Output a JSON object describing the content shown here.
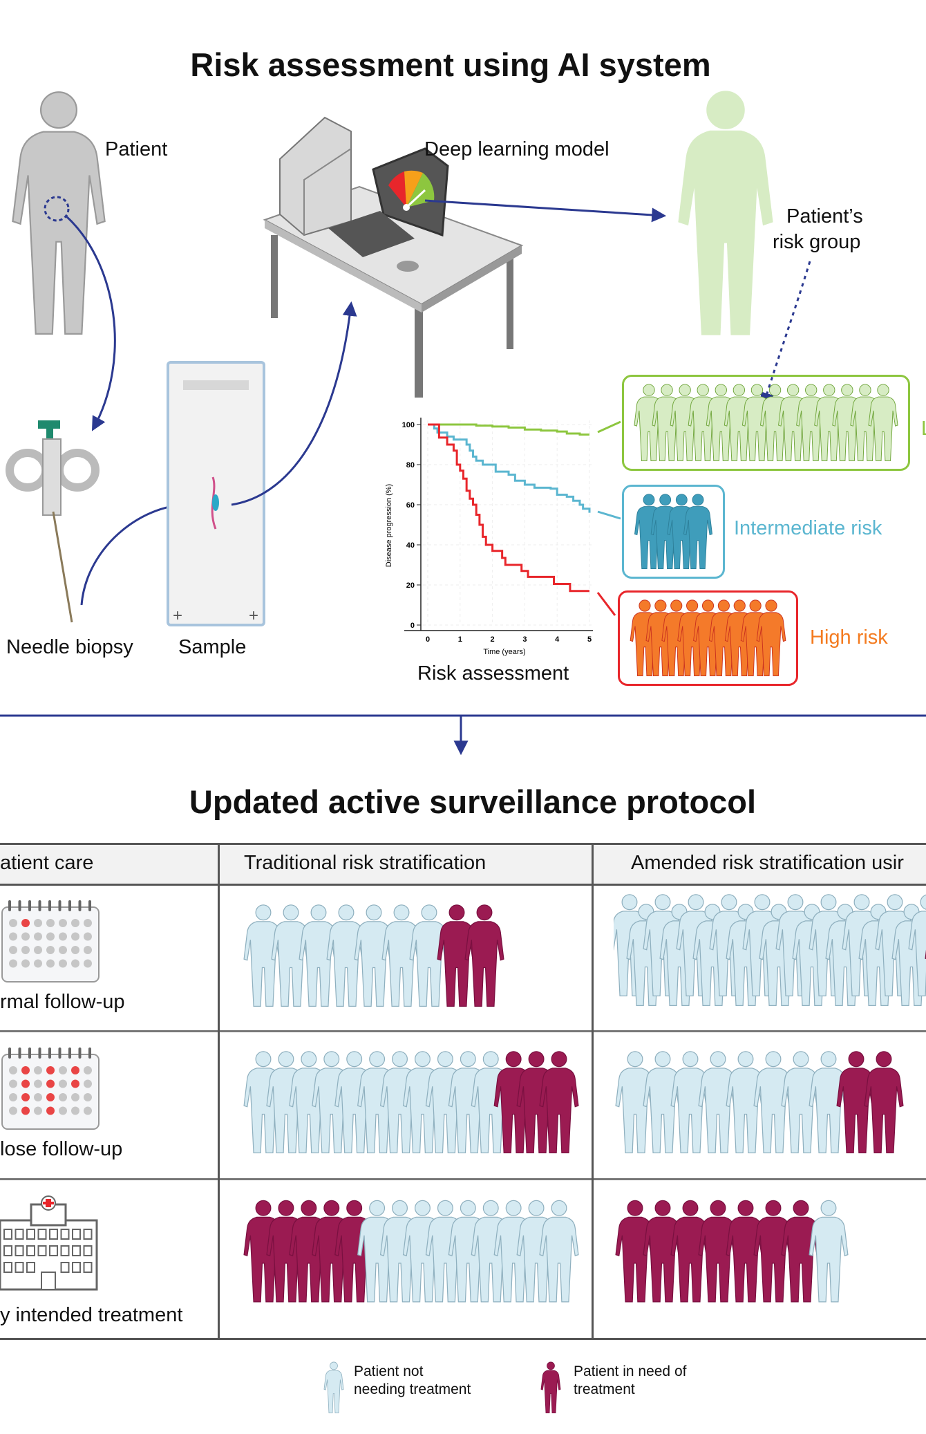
{
  "top": {
    "title": "Risk assessment using AI system",
    "patient_label": "Patient",
    "model_label": "Deep learning model",
    "risk_group_label_1": "Patient’s",
    "risk_group_label_2": "risk group",
    "biopsy_label": "Needle biopsy",
    "sample_label": "Sample",
    "risk_assessment_label": "Risk assessment",
    "groups": [
      {
        "label": "L",
        "count": 14,
        "color": "#8dc63f",
        "fill": "#d7ecc4"
      },
      {
        "label": "Intermediate risk",
        "count": 4,
        "color": "#5bb6d0",
        "fill": "#3f9dbb"
      },
      {
        "label": "High risk",
        "count": 9,
        "color": "#e8262b",
        "fill": "#f47a2a",
        "text_color": "#f47b20"
      }
    ]
  },
  "chart_data": {
    "type": "line",
    "xlabel": "Time (years)",
    "ylabel": "Disease progression (%)",
    "xlim": [
      0,
      5
    ],
    "ylim": [
      0,
      100
    ],
    "xticks": [
      "0",
      "1",
      "2",
      "3",
      "4",
      "5"
    ],
    "yticks": [
      "0",
      "20",
      "40",
      "60",
      "80",
      "100"
    ],
    "grid": true,
    "step": true,
    "series": [
      {
        "color": "#8dc63f",
        "x": [
          0,
          1,
          1.5,
          2,
          2.5,
          3,
          3.5,
          4,
          4.3,
          4.7,
          5
        ],
        "y": [
          100,
          100,
          99.5,
          99,
          98.5,
          97.5,
          97,
          96.5,
          95.5,
          95,
          95
        ]
      },
      {
        "color": "#5bb6d0",
        "x": [
          0,
          0.2,
          0.3,
          0.6,
          0.8,
          1,
          1.2,
          1.3,
          1.4,
          1.5,
          1.7,
          2.1,
          2.5,
          2.7,
          3,
          3.3,
          3.8,
          4,
          4.3,
          4.5,
          4.7,
          4.8,
          5
        ],
        "y": [
          100,
          98,
          96,
          94,
          92.5,
          92.5,
          90,
          87,
          84,
          82,
          80,
          76.5,
          75,
          72,
          70,
          68.5,
          68,
          65,
          64,
          62,
          60,
          58,
          56
        ]
      },
      {
        "color": "#e8262b",
        "x": [
          0,
          0.35,
          0.6,
          0.8,
          0.9,
          1,
          1.1,
          1.2,
          1.3,
          1.4,
          1.5,
          1.6,
          1.7,
          1.8,
          2,
          2.3,
          2.4,
          2.9,
          3.1,
          3.9,
          4.4,
          5
        ],
        "y": [
          100,
          93.5,
          90,
          87,
          80,
          77,
          73,
          67,
          63,
          60,
          55,
          50,
          44,
          40,
          37,
          33.5,
          30,
          27,
          24,
          20.5,
          17,
          17
        ]
      }
    ]
  },
  "bottom": {
    "title": "Updated active surveillance protocol",
    "headers": [
      "atient care",
      "Traditional risk stratification",
      "Amended risk stratification usir"
    ],
    "rows": [
      {
        "label": "rmal follow-up",
        "icon": "calendar-icon",
        "traditional": {
          "not_needing": 7,
          "needing": 2,
          "order": "light-first"
        },
        "amended": {
          "not_needing": 19,
          "needing": 1,
          "order": "light-first"
        }
      },
      {
        "label": "lose follow-up",
        "icon": "calendar-icon",
        "traditional": {
          "not_needing": 11,
          "needing": 3,
          "order": "light-first"
        },
        "amended": {
          "not_needing": 8,
          "needing": 2,
          "order": "light-first"
        }
      },
      {
        "label": "y intended treatment",
        "icon": "hospital-icon",
        "traditional": {
          "not_needing": 9,
          "needing": 5,
          "order": "dark-first"
        },
        "amended": {
          "not_needing": 1,
          "needing": 7,
          "order": "dark-first"
        }
      }
    ],
    "legend": [
      {
        "line1": "Patient not",
        "line2": "needing treatment",
        "color": "#d5eaf2"
      },
      {
        "line1": "Patient in need of",
        "line2": "treatment",
        "color": "#9b1b52"
      }
    ]
  },
  "colors": {
    "arrow": "#2b3990",
    "not_needing": "#d5eaf2",
    "needing": "#9b1b52"
  }
}
